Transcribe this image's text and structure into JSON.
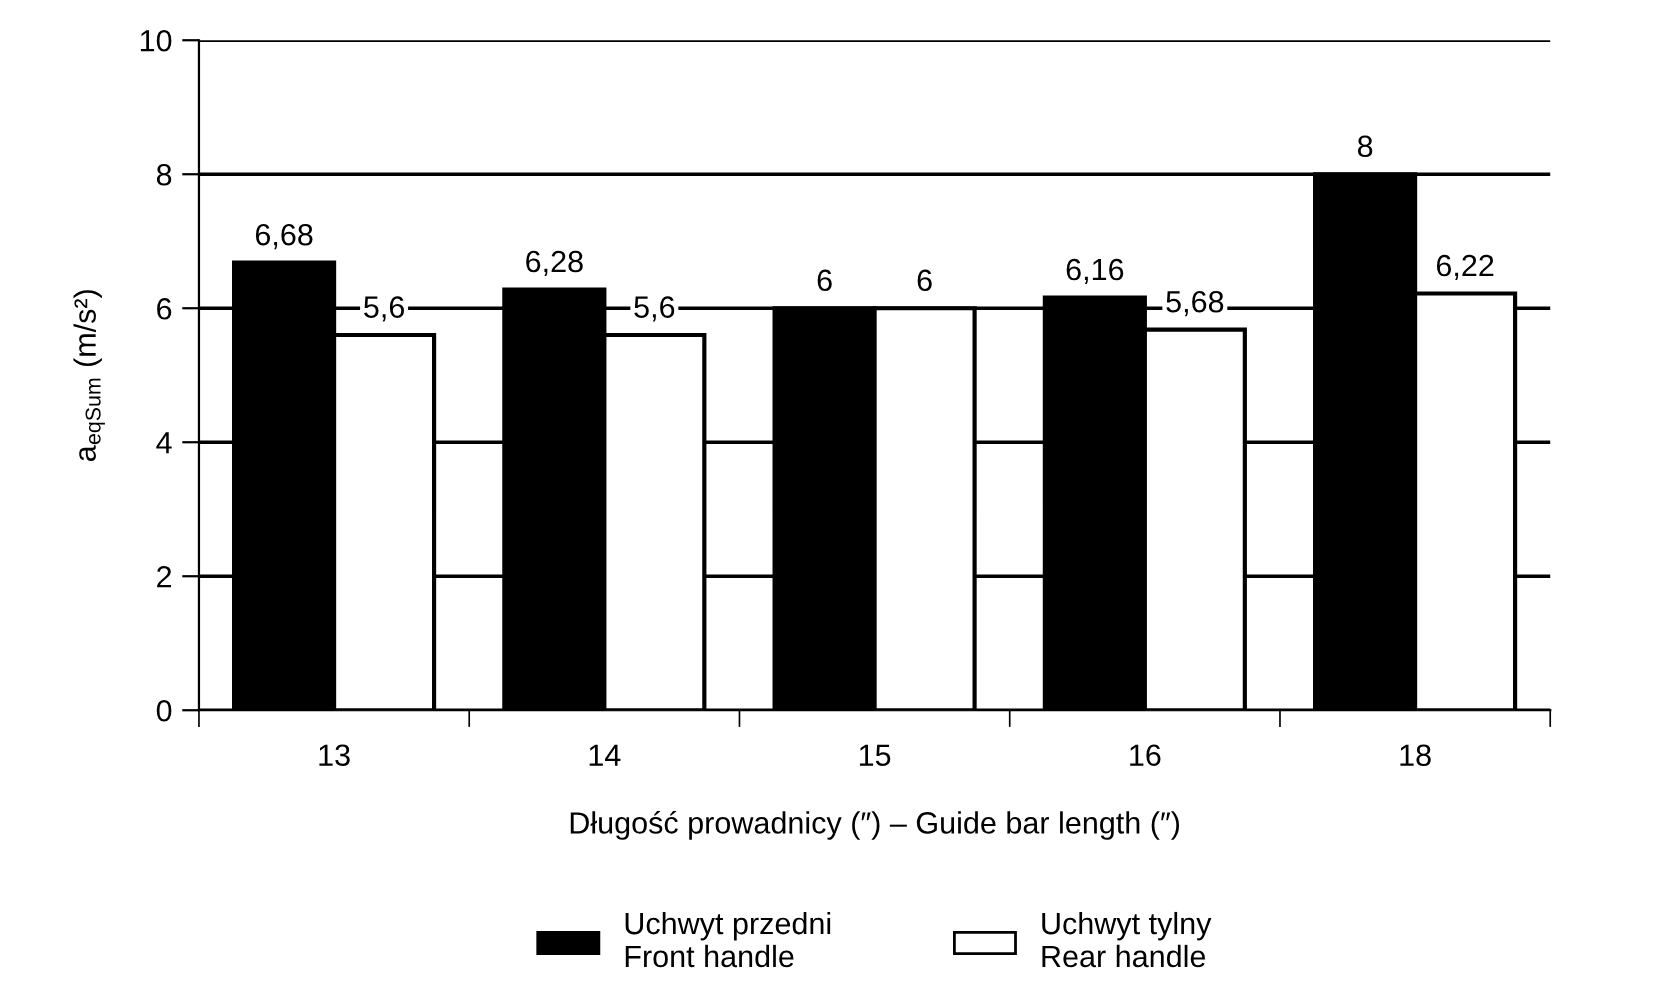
{
  "chart_data": {
    "type": "bar",
    "categories": [
      "13",
      "14",
      "15",
      "16",
      "18"
    ],
    "xlabel": "Długość prowadnicy (″) – Guide bar length (″)",
    "ylabel": "a$_{eqSum}$ (m/s²)",
    "series": [
      {
        "name": "Uchwyt przedni\nFront handle",
        "color": "#000000",
        "values": [
          6.68,
          6.28,
          6,
          6.16,
          8
        ],
        "value_labels": [
          "6,68",
          "6,28",
          "6",
          "6,16",
          "8"
        ]
      },
      {
        "name": "Uchwyt tylny\nRear handle",
        "color": "#ffffff",
        "values": [
          5.6,
          5.6,
          6,
          5.68,
          6.22
        ],
        "value_labels": [
          "5,6",
          "5,6",
          "6",
          "5,68",
          "6,22"
        ]
      }
    ],
    "ylim": [
      0,
      10
    ],
    "yticks": [
      0,
      2,
      4,
      6,
      8,
      10
    ],
    "grid": "y",
    "legend": "bottom"
  }
}
